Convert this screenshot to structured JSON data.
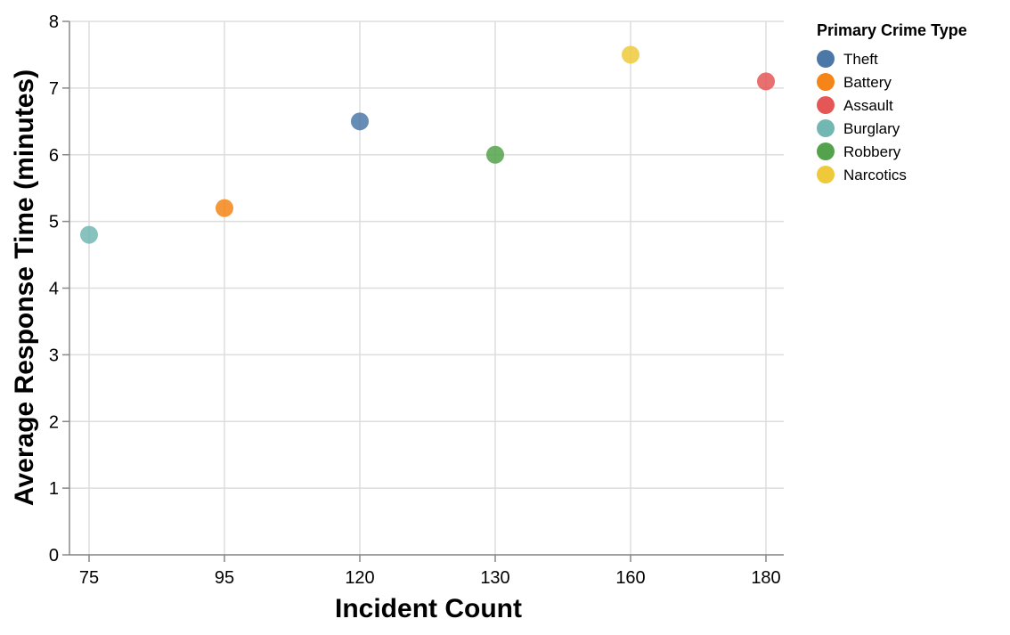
{
  "chart_data": {
    "type": "scatter",
    "xlabel": "Incident Count",
    "ylabel": "Average Response Time (minutes)",
    "x_axis_kind": "ordinal",
    "x_categories": [
      "75",
      "95",
      "120",
      "130",
      "160",
      "180"
    ],
    "ylim": [
      0,
      8
    ],
    "y_ticks": [
      0,
      1,
      2,
      3,
      4,
      5,
      6,
      7,
      8
    ],
    "grid": true,
    "legend": {
      "title": "Primary Crime Type",
      "placement": "right"
    },
    "series": [
      {
        "name": "Theft",
        "color": "#4c78a8",
        "points": [
          {
            "x": "120",
            "y": 6.5
          }
        ]
      },
      {
        "name": "Battery",
        "color": "#f58518",
        "points": [
          {
            "x": "95",
            "y": 5.2
          }
        ]
      },
      {
        "name": "Assault",
        "color": "#e45756",
        "points": [
          {
            "x": "180",
            "y": 7.1
          }
        ]
      },
      {
        "name": "Burglary",
        "color": "#72b7b2",
        "points": [
          {
            "x": "75",
            "y": 4.8
          }
        ]
      },
      {
        "name": "Robbery",
        "color": "#54a24b",
        "points": [
          {
            "x": "130",
            "y": 6.0
          }
        ]
      },
      {
        "name": "Narcotics",
        "color": "#eeca3b",
        "points": [
          {
            "x": "160",
            "y": 7.5
          }
        ]
      }
    ]
  }
}
